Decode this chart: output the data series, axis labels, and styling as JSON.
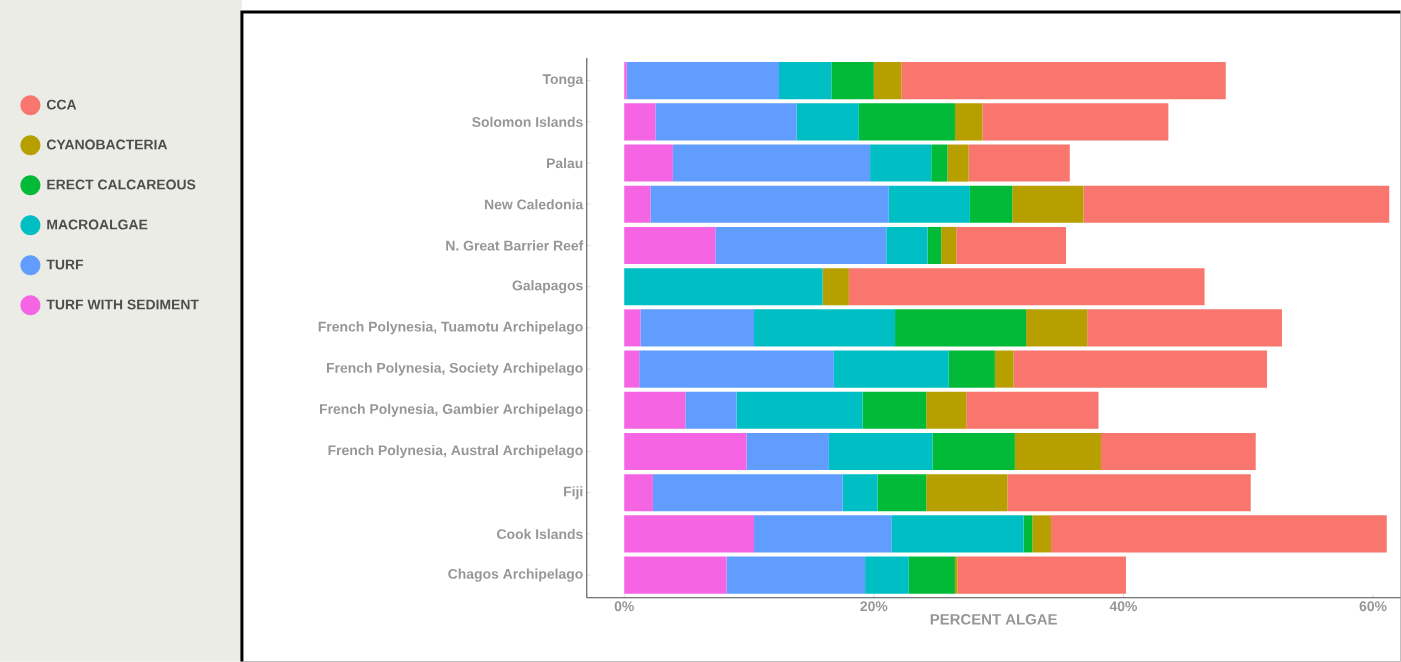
{
  "chart_data": {
    "type": "bar",
    "orientation": "horizontal",
    "stacked": true,
    "categories": [
      "Tonga",
      "Solomon Islands",
      "Palau",
      "New Caledonia",
      "N. Great Barrier Reef",
      "Galapagos",
      "French Polynesia, Tuamotu Archipelago",
      "French Polynesia, Society Archipelago",
      "French Polynesia, Gambier Archipelago",
      "French Polynesia, Austral Archipelago",
      "Fiji",
      "Cook Islands",
      "Chagos Archipelago"
    ],
    "series": [
      {
        "name": "TURF WITH SEDIMENT",
        "color": "#f564e3",
        "values": [
          0.2,
          2.5,
          3.9,
          2.1,
          7.3,
          0,
          1.3,
          1.2,
          4.9,
          9.8,
          2.3,
          10.4,
          8.2
        ]
      },
      {
        "name": "TURF",
        "color": "#619cff",
        "values": [
          12.2,
          11.3,
          15.8,
          19.1,
          13.7,
          0,
          9.1,
          15.6,
          4.1,
          6.6,
          15.2,
          11.0,
          11.1
        ]
      },
      {
        "name": "MACROALGAE",
        "color": "#00bfc4",
        "values": [
          4.2,
          5.0,
          4.9,
          6.5,
          3.3,
          15.9,
          11.3,
          9.2,
          10.1,
          8.3,
          2.8,
          10.6,
          3.5
        ]
      },
      {
        "name": "ERECT CALCAREOUS",
        "color": "#00ba38",
        "values": [
          3.4,
          7.7,
          1.3,
          3.4,
          1.1,
          0,
          10.5,
          3.7,
          5.1,
          6.6,
          3.9,
          0.7,
          3.7
        ]
      },
      {
        "name": "CYANOBACTERIA",
        "color": "#b79f00",
        "values": [
          2.2,
          2.2,
          1.7,
          5.7,
          1.2,
          2.1,
          4.9,
          1.5,
          3.2,
          6.9,
          6.5,
          1.5,
          0.2
        ]
      },
      {
        "name": "CCA",
        "color": "#f8766d",
        "values": [
          26.0,
          14.9,
          8.1,
          24.5,
          8.8,
          28.5,
          15.6,
          20.3,
          10.6,
          12.4,
          19.5,
          26.9,
          13.5
        ]
      }
    ],
    "xlim": [
      -3,
      62.2
    ],
    "xticks": [
      {
        "value": 0,
        "label": "0%"
      },
      {
        "value": 20,
        "label": "20%"
      },
      {
        "value": 40,
        "label": "40%"
      },
      {
        "value": 60,
        "label": "60%"
      }
    ],
    "xlabel": "PERCENT ALGAE",
    "grid": false,
    "legend": "left"
  }
}
